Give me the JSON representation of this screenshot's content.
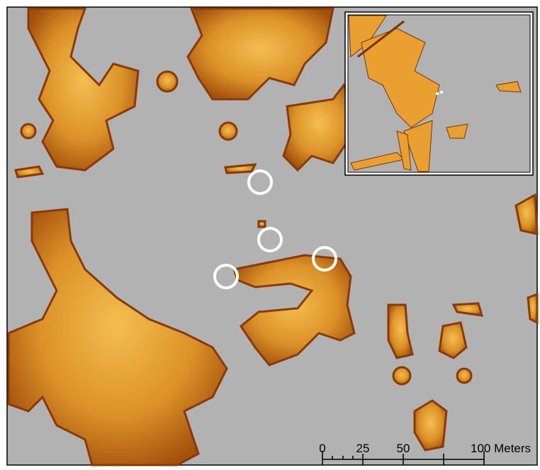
{
  "scale_bar": {
    "labels": [
      "0",
      "25",
      "50",
      "100 Meters"
    ]
  }
}
